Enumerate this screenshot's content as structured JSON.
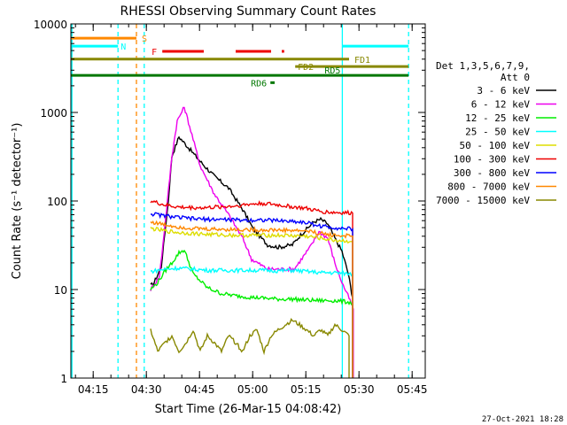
{
  "chart_data": {
    "type": "line",
    "title": "RHESSI Observing Summary Count Rates",
    "xlabel": "Start Time (26-Mar-15 04:08:42)",
    "ylabel": "Count Rate (s⁻¹ detector⁻¹)",
    "x_units": "minutes after 04:08:42",
    "xlim": [
      0,
      100
    ],
    "ylim": [
      1,
      10000
    ],
    "yscale": "log",
    "x_ticks": [
      {
        "x": 6.3,
        "label": "04:15"
      },
      {
        "x": 21.3,
        "label": "04:30"
      },
      {
        "x": 36.3,
        "label": "04:45"
      },
      {
        "x": 51.3,
        "label": "05:00"
      },
      {
        "x": 66.3,
        "label": "05:15"
      },
      {
        "x": 81.3,
        "label": "05:30"
      },
      {
        "x": 96.3,
        "label": "05:45"
      }
    ],
    "y_ticks": [
      {
        "y": 1,
        "label": "1"
      },
      {
        "y": 10,
        "label": "10"
      },
      {
        "y": 100,
        "label": "100"
      },
      {
        "y": 1000,
        "label": "1000"
      },
      {
        "y": 10000,
        "label": "10000"
      }
    ],
    "legend": {
      "placement": "right",
      "header": [
        "Det 1,3,5,6,7,9,",
        "Att 0"
      ],
      "entries": [
        {
          "label": "3 - 6 keV",
          "color": "#000000"
        },
        {
          "label": "6 - 12 keV",
          "color": "#ee00ee"
        },
        {
          "label": "12 - 25 keV",
          "color": "#00ee00"
        },
        {
          "label": "25 - 50 keV",
          "color": "#00ffff"
        },
        {
          "label": "50 - 100 keV",
          "color": "#dddd00"
        },
        {
          "label": "100 - 300 keV",
          "color": "#ee0000"
        },
        {
          "label": "300 - 800 keV",
          "color": "#0000ff"
        },
        {
          "label": "800 - 7000 keV",
          "color": "#ff8800"
        },
        {
          "label": "7000 - 15000 keV",
          "color": "#888800"
        }
      ]
    },
    "series": [
      {
        "name": "3 - 6 keV",
        "color": "#000000",
        "x": [
          22.5,
          23.5,
          25.5,
          27.5,
          28.5,
          30.5,
          32.5,
          36.5,
          40.5,
          44.5,
          48.5,
          51.5,
          55.5,
          58.5,
          62.5,
          64.5,
          66.5,
          68.5,
          70.5,
          72.5,
          74.5,
          76.5,
          78.3,
          79.5
        ],
        "y": [
          11,
          12,
          18,
          100,
          320,
          530,
          430,
          280,
          190,
          140,
          80,
          48,
          32,
          30,
          32,
          40,
          48,
          58,
          62,
          55,
          38,
          27,
          15,
          8
        ]
      },
      {
        "name": "6 - 12 keV",
        "color": "#ee00ee",
        "x": [
          22.5,
          25,
          27,
          28.5,
          30,
          32,
          33.5,
          36.5,
          40.5,
          44.5,
          48.5,
          51,
          55.5,
          59.5,
          63,
          67.5,
          70,
          72.5,
          74.5,
          76.5,
          78.5,
          79.7
        ],
        "y": [
          10,
          14,
          80,
          320,
          800,
          1150,
          700,
          250,
          120,
          70,
          38,
          22,
          17,
          17,
          17,
          30,
          45,
          38,
          20,
          12,
          8,
          6
        ]
      },
      {
        "name": "12 - 25 keV",
        "color": "#00ee00",
        "x": [
          22.5,
          24.5,
          26.5,
          28.5,
          30.5,
          32,
          34.5,
          38.5,
          42.5,
          46.5,
          50.5,
          54.5,
          58.5,
          62.5,
          66.5,
          70.5,
          74.5,
          78.5,
          79.5
        ],
        "y": [
          10,
          12,
          16,
          20,
          26,
          28,
          15,
          10.5,
          9,
          8.5,
          8.2,
          8,
          7.8,
          7.8,
          7.6,
          7.5,
          7.5,
          7.2,
          7
        ]
      },
      {
        "name": "25 - 50 keV",
        "color": "#00ffff",
        "x": [
          22.5,
          26.5,
          30.5,
          34.5,
          38.5,
          42.5,
          46.5,
          50.5,
          54.5,
          58.5,
          62.5,
          66.5,
          70.5,
          74.5,
          79.5
        ],
        "y": [
          16,
          17,
          17.5,
          17,
          16.5,
          16.5,
          16.5,
          16.5,
          16.5,
          16.3,
          16.5,
          16,
          15.5,
          15.5,
          15
        ]
      },
      {
        "name": "50 - 100 keV",
        "color": "#dddd00",
        "x": [
          22.5,
          26.5,
          30.5,
          34.5,
          38.5,
          42.5,
          46.5,
          50.5,
          54.5,
          58.5,
          62.5,
          66.5,
          70.5,
          74.5,
          79.5
        ],
        "y": [
          49,
          46,
          44,
          43,
          42,
          41.5,
          41,
          41,
          41,
          41,
          40.5,
          40,
          38,
          36,
          35
        ]
      },
      {
        "name": "100 - 300 keV",
        "color": "#ee0000",
        "x": [
          22.5,
          26.5,
          30.5,
          34.5,
          38.5,
          42.5,
          46.5,
          50.5,
          54.5,
          58.5,
          62.5,
          66.5,
          70.5,
          74.5,
          79.5
        ],
        "y": [
          100,
          90,
          85,
          84,
          84,
          86,
          88,
          92,
          94,
          90,
          86,
          82,
          76,
          74,
          73
        ]
      },
      {
        "name": "300 - 800 keV",
        "color": "#0000ff",
        "x": [
          22.5,
          26.5,
          30.5,
          34.5,
          38.5,
          42.5,
          46.5,
          50.5,
          54.5,
          58.5,
          62.5,
          66.5,
          70.5,
          74.5,
          79.5
        ],
        "y": [
          72,
          68,
          65,
          63,
          62,
          62,
          61,
          61,
          61,
          60,
          59,
          57,
          52,
          50,
          48
        ]
      },
      {
        "name": "800 - 7000 keV",
        "color": "#ff8800",
        "x": [
          22.5,
          26.5,
          30.5,
          34.5,
          38.5,
          42.5,
          46.5,
          50.5,
          54.5,
          58.5,
          62.5,
          66.5,
          70.5,
          74.5,
          79.5
        ],
        "y": [
          58,
          54,
          51,
          49,
          48,
          48,
          47.5,
          47.5,
          47,
          47,
          46.5,
          46,
          43,
          41,
          40
        ]
      },
      {
        "name": "7000 - 15000 keV",
        "color": "#888800",
        "x": [
          22.5,
          24.5,
          26.5,
          28.5,
          30.5,
          32.5,
          34.5,
          36.5,
          38.5,
          40.5,
          42.5,
          44.5,
          46.5,
          48.5,
          50.5,
          52.5,
          54.5,
          56.5,
          58.5,
          60.5,
          62.5,
          64.5,
          66.5,
          68.5,
          70.5,
          72.5,
          74.5,
          76.5,
          78.5
        ],
        "y": [
          3.5,
          2,
          2.5,
          3,
          2,
          2.5,
          3.5,
          2,
          3,
          2.5,
          2,
          3,
          2.5,
          2,
          3,
          3.5,
          2,
          3,
          3.5,
          4,
          4.5,
          4,
          3.5,
          3,
          3.5,
          3,
          4,
          3.5,
          3
        ]
      }
    ],
    "vertical_markers": [
      {
        "x": 0.3,
        "color": "#00ffff",
        "style": "solid"
      },
      {
        "x": 13.3,
        "color": "#00ffff",
        "style": "dashed"
      },
      {
        "x": 18.5,
        "color": "#ff8800",
        "style": "dashed"
      },
      {
        "x": 20.7,
        "color": "#00ffff",
        "style": "dashed"
      },
      {
        "x": 76.6,
        "color": "#00ffff",
        "style": "solid"
      },
      {
        "x": 95.3,
        "color": "#00ffff",
        "style": "dashed"
      }
    ],
    "flag_bars": [
      {
        "label": "S",
        "color": "#ff8800",
        "y": 6900,
        "segments": [
          [
            0,
            18.5
          ]
        ]
      },
      {
        "label": "N",
        "color": "#00ffff",
        "y": 5600,
        "segments": [
          [
            0,
            13.3
          ],
          [
            76.6,
            95.3
          ]
        ]
      },
      {
        "label": "F",
        "color": "#ee0000",
        "y": 4900,
        "segments": [
          [
            25.8,
            37.5
          ],
          [
            46.5,
            56.5
          ],
          [
            59.5,
            60.2
          ]
        ]
      },
      {
        "label": "FD1",
        "color": "#888800",
        "y": 4000,
        "segments": [
          [
            0,
            78.5
          ]
        ]
      },
      {
        "label": "FD2",
        "color": "#888800",
        "y": 3300,
        "segments": [
          [
            63.3,
            95.3
          ]
        ]
      },
      {
        "label": "RD5",
        "color": "#007700",
        "y": 2620,
        "segments": [
          [
            0,
            95.3
          ]
        ]
      },
      {
        "label": "RD6",
        "color": "#007700",
        "y": 2170,
        "segments": [
          [
            56.3,
            57.5
          ]
        ]
      }
    ]
  },
  "footer": {
    "timestamp": "27-Oct-2021 18:28"
  }
}
